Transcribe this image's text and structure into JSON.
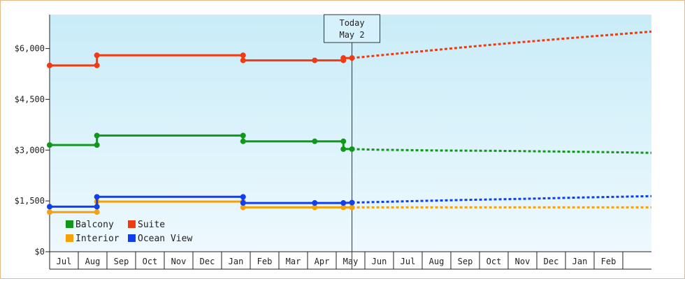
{
  "chart_data": {
    "type": "line",
    "title": "",
    "xlabel": "",
    "ylabel": "",
    "ylim": [
      0,
      7000
    ],
    "y_ticks": [
      "$0",
      "$1,500",
      "$3,000",
      "$4,500",
      "$6,000"
    ],
    "y_tick_values": [
      0,
      1500,
      3000,
      4500,
      6000
    ],
    "month_labels": [
      "Jul",
      "Aug",
      "Sep",
      "Oct",
      "Nov",
      "Dec",
      "Jan",
      "Feb",
      "Mar",
      "Apr",
      "May",
      "Jun",
      "Jul",
      "Aug",
      "Sep",
      "Oct",
      "Nov",
      "Dec",
      "Jan",
      "Feb"
    ],
    "x_units": "months from the start of Jul",
    "x_range": [
      -0.5,
      20.5
    ],
    "today": {
      "label": "Today",
      "date": "May 2",
      "x": 10.05
    },
    "grid": false,
    "legend_position": "bottom-left",
    "background": {
      "top": "#c9ecf8",
      "bottom": "#eef9fe"
    },
    "series": [
      {
        "name": "Balcony",
        "color": "#11981a",
        "actual": [
          [
            -0.5,
            3150
          ],
          [
            1.15,
            3150
          ],
          [
            1.15,
            3430
          ],
          [
            6.25,
            3430
          ],
          [
            6.25,
            3260
          ],
          [
            8.75,
            3260
          ],
          [
            9.75,
            3260
          ],
          [
            9.75,
            3030
          ],
          [
            10.05,
            3030
          ]
        ],
        "forecast": [
          [
            10.05,
            3030
          ],
          [
            11.0,
            3010
          ],
          [
            13.0,
            2990
          ],
          [
            15.0,
            2980
          ],
          [
            17.0,
            2960
          ],
          [
            19.0,
            2940
          ],
          [
            20.5,
            2920
          ]
        ]
      },
      {
        "name": "Suite",
        "color": "#f03a12",
        "actual": [
          [
            -0.5,
            5500
          ],
          [
            1.15,
            5500
          ],
          [
            1.15,
            5800
          ],
          [
            6.25,
            5800
          ],
          [
            6.25,
            5650
          ],
          [
            8.75,
            5650
          ],
          [
            9.75,
            5650
          ],
          [
            9.75,
            5720
          ],
          [
            10.05,
            5720
          ]
        ],
        "forecast": [
          [
            10.05,
            5720
          ],
          [
            12.0,
            5880
          ],
          [
            14.0,
            6040
          ],
          [
            16.0,
            6190
          ],
          [
            18.0,
            6330
          ],
          [
            20.5,
            6500
          ]
        ]
      },
      {
        "name": "Interior",
        "color": "#f5a20a",
        "actual": [
          [
            -0.5,
            1170
          ],
          [
            1.15,
            1170
          ],
          [
            1.15,
            1480
          ],
          [
            6.25,
            1480
          ],
          [
            6.25,
            1310
          ],
          [
            8.75,
            1310
          ],
          [
            9.75,
            1310
          ],
          [
            10.05,
            1310
          ]
        ],
        "forecast": [
          [
            10.05,
            1310
          ],
          [
            20.5,
            1310
          ]
        ]
      },
      {
        "name": "Ocean View",
        "color": "#0f3fee",
        "actual": [
          [
            -0.5,
            1330
          ],
          [
            1.15,
            1330
          ],
          [
            1.15,
            1620
          ],
          [
            6.25,
            1620
          ],
          [
            6.25,
            1440
          ],
          [
            8.75,
            1440
          ],
          [
            9.75,
            1440
          ],
          [
            10.05,
            1450
          ]
        ],
        "forecast": [
          [
            10.05,
            1450
          ],
          [
            12.0,
            1490
          ],
          [
            14.0,
            1530
          ],
          [
            16.0,
            1560
          ],
          [
            18.0,
            1600
          ],
          [
            20.5,
            1640
          ]
        ]
      }
    ],
    "markers": {
      "Balcony": [
        [
          -0.5,
          3150
        ],
        [
          1.15,
          3150
        ],
        [
          1.15,
          3430
        ],
        [
          6.25,
          3430
        ],
        [
          6.25,
          3260
        ],
        [
          8.75,
          3260
        ],
        [
          9.75,
          3260
        ],
        [
          9.75,
          3030
        ],
        [
          10.05,
          3030
        ]
      ],
      "Suite": [
        [
          -0.5,
          5500
        ],
        [
          1.15,
          5500
        ],
        [
          1.15,
          5800
        ],
        [
          6.25,
          5800
        ],
        [
          6.25,
          5650
        ],
        [
          8.75,
          5650
        ],
        [
          9.75,
          5650
        ],
        [
          9.75,
          5720
        ],
        [
          10.05,
          5720
        ]
      ],
      "Interior": [
        [
          -0.5,
          1170
        ],
        [
          1.15,
          1170
        ],
        [
          1.15,
          1480
        ],
        [
          6.25,
          1480
        ],
        [
          6.25,
          1310
        ],
        [
          8.75,
          1310
        ],
        [
          9.75,
          1310
        ],
        [
          10.05,
          1310
        ]
      ],
      "Ocean View": [
        [
          -0.5,
          1330
        ],
        [
          1.15,
          1330
        ],
        [
          1.15,
          1620
        ],
        [
          6.25,
          1620
        ],
        [
          6.25,
          1440
        ],
        [
          8.75,
          1440
        ],
        [
          9.75,
          1440
        ],
        [
          10.05,
          1450
        ]
      ]
    },
    "legend_order": [
      "Balcony",
      "Suite",
      "Interior",
      "Ocean View"
    ]
  }
}
